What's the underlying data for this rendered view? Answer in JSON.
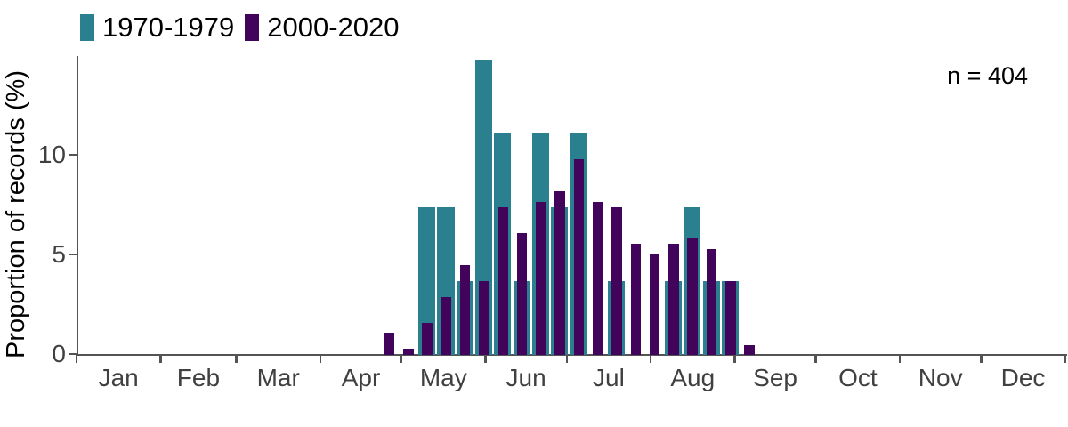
{
  "legend": {
    "series": [
      {
        "label": "1970-1979",
        "color": "#2a808e"
      },
      {
        "label": "2000-2020",
        "color": "#42045a"
      }
    ]
  },
  "annotation": {
    "text": "n = 404"
  },
  "chart_data": {
    "type": "bar",
    "title": "",
    "subtitle": "",
    "xlabel": "",
    "ylabel": "Proportion of records (%)",
    "ylim": [
      0,
      15.2
    ],
    "yticks": [
      0,
      5,
      10
    ],
    "grid": false,
    "legend_position": "top-left",
    "annotation": "n = 404",
    "x_axis": "day of year (Jan–Dec), ticks at month boundaries",
    "month_labels": [
      "Jan",
      "Feb",
      "Mar",
      "Apr",
      "May",
      "Jun",
      "Jul",
      "Aug",
      "Sep",
      "Oct",
      "Nov",
      "Dec"
    ],
    "bin_unit": "7-day week of year",
    "start_week": 16,
    "weeks": [
      16,
      17,
      18,
      19,
      20,
      21,
      22,
      23,
      24,
      25,
      26,
      27,
      28,
      29,
      30,
      31,
      32,
      33,
      34,
      35
    ],
    "series": [
      {
        "name": "1970-1979",
        "color": "#2a808e",
        "values": [
          0,
          0,
          7.4,
          7.4,
          3.7,
          14.8,
          11.1,
          3.7,
          11.1,
          7.4,
          11.1,
          0,
          3.7,
          0,
          0,
          3.7,
          7.4,
          3.7,
          3.7,
          0
        ]
      },
      {
        "name": "2000-2020",
        "color": "#42045a",
        "values": [
          1.1,
          0.3,
          1.6,
          2.9,
          4.5,
          3.7,
          7.4,
          6.1,
          7.7,
          8.2,
          9.8,
          7.7,
          7.4,
          5.6,
          5.1,
          5.6,
          5.9,
          5.3,
          3.7,
          0.5
        ]
      }
    ]
  }
}
